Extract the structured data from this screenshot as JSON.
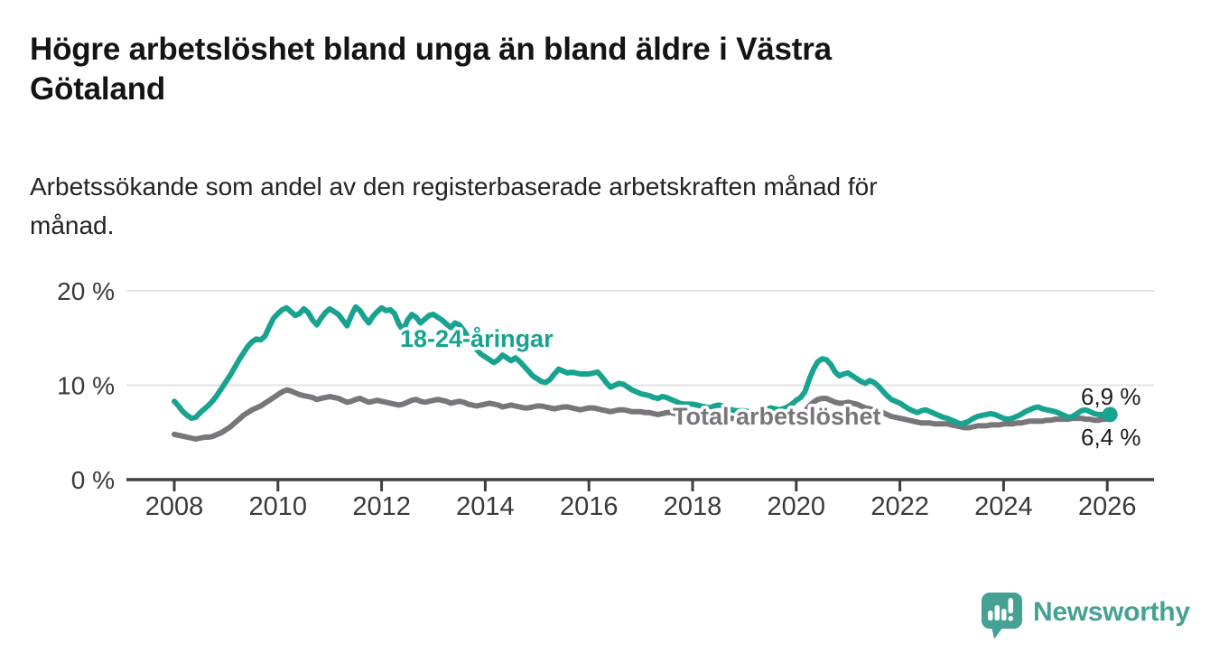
{
  "header": {
    "title_lines": [
      "Högre arbetslöshet bland unga än bland äldre i Västra",
      "Götaland"
    ],
    "subtitle_lines": [
      "Arbetssökande som andel av den registerbaserade arbetskraften månad för",
      "månad."
    ]
  },
  "chart_data": {
    "type": "line",
    "title": "Högre arbetslöshet bland unga än bland äldre i Västra Götaland",
    "subtitle": "Arbetssökande som andel av den registerbaserade arbetskraften månad för månad.",
    "x_unit": "year-month",
    "x_start_year": 2008,
    "months_per_point": 1,
    "x_ticks": [
      {
        "label": "2008",
        "year": 2008
      },
      {
        "label": "2010",
        "year": 2010
      },
      {
        "label": "2012",
        "year": 2012
      },
      {
        "label": "2014",
        "year": 2014
      },
      {
        "label": "2016",
        "year": 2016
      },
      {
        "label": "2018",
        "year": 2018
      },
      {
        "label": "2020",
        "year": 2020
      },
      {
        "label": "2022",
        "year": 2022
      },
      {
        "label": "2024",
        "year": 2024
      },
      {
        "label": "2026",
        "year": 2026
      }
    ],
    "y_ticks": [
      {
        "label": "0 %",
        "value": 0
      },
      {
        "label": "10 %",
        "value": 10
      },
      {
        "label": "20 %",
        "value": 20
      }
    ],
    "ylim": [
      0,
      21.5
    ],
    "grid": "horizontal-at-10-and-20",
    "legend_position": "inline-labels-on-lines",
    "series": [
      {
        "name": "Total arbetslöshet",
        "color": "#78767b",
        "end_label": "6,4 %",
        "end_value": 6.4,
        "values": [
          4.8,
          4.7,
          4.6,
          4.5,
          4.4,
          4.3,
          4.4,
          4.5,
          4.5,
          4.6,
          4.8,
          5.0,
          5.3,
          5.6,
          6.0,
          6.4,
          6.8,
          7.1,
          7.4,
          7.6,
          7.8,
          8.1,
          8.4,
          8.7,
          9.0,
          9.3,
          9.5,
          9.4,
          9.2,
          9.0,
          8.9,
          8.8,
          8.7,
          8.5,
          8.6,
          8.7,
          8.8,
          8.7,
          8.6,
          8.4,
          8.2,
          8.3,
          8.5,
          8.6,
          8.4,
          8.2,
          8.3,
          8.4,
          8.3,
          8.2,
          8.1,
          8.0,
          7.9,
          8.0,
          8.2,
          8.4,
          8.5,
          8.3,
          8.2,
          8.3,
          8.4,
          8.5,
          8.4,
          8.3,
          8.1,
          8.2,
          8.3,
          8.2,
          8.0,
          7.9,
          7.8,
          7.9,
          8.0,
          8.1,
          8.0,
          7.9,
          7.7,
          7.8,
          7.9,
          7.8,
          7.7,
          7.6,
          7.6,
          7.7,
          7.8,
          7.8,
          7.7,
          7.6,
          7.5,
          7.6,
          7.7,
          7.7,
          7.6,
          7.5,
          7.4,
          7.5,
          7.6,
          7.6,
          7.5,
          7.4,
          7.3,
          7.2,
          7.3,
          7.4,
          7.4,
          7.3,
          7.2,
          7.2,
          7.2,
          7.1,
          7.1,
          7.0,
          6.9,
          7.0,
          7.1,
          7.1,
          7.0,
          6.9,
          6.8,
          6.8,
          6.9,
          6.8,
          6.8,
          6.7,
          6.6,
          6.6,
          6.7,
          6.7,
          6.6,
          6.5,
          6.4,
          6.4,
          6.5,
          6.4,
          6.4,
          6.3,
          6.3,
          6.4,
          6.5,
          6.5,
          6.4,
          6.4,
          6.5,
          6.6,
          6.8,
          6.9,
          7.2,
          7.8,
          8.2,
          8.5,
          8.6,
          8.6,
          8.4,
          8.2,
          8.1,
          8.1,
          8.2,
          8.1,
          8.0,
          7.8,
          7.6,
          7.5,
          7.4,
          7.3,
          7.1,
          6.9,
          6.7,
          6.6,
          6.5,
          6.4,
          6.3,
          6.2,
          6.1,
          6.0,
          6.0,
          6.0,
          5.9,
          5.9,
          5.9,
          5.9,
          5.8,
          5.7,
          5.6,
          5.5,
          5.5,
          5.6,
          5.7,
          5.7,
          5.7,
          5.8,
          5.8,
          5.8,
          5.9,
          5.9,
          5.9,
          6.0,
          6.0,
          6.1,
          6.2,
          6.2,
          6.2,
          6.2,
          6.3,
          6.3,
          6.4,
          6.4,
          6.4,
          6.4,
          6.5,
          6.5,
          6.5,
          6.4,
          6.4,
          6.3,
          6.3,
          6.4,
          6.4
        ]
      },
      {
        "name": "18-24-åringar",
        "color": "#17a38f",
        "end_label": "6,9 %",
        "end_value": 6.9,
        "values": [
          8.3,
          7.8,
          7.2,
          6.8,
          6.5,
          6.6,
          7.1,
          7.5,
          7.9,
          8.4,
          9.0,
          9.7,
          10.4,
          11.1,
          11.9,
          12.7,
          13.4,
          14.1,
          14.6,
          14.9,
          14.8,
          15.2,
          16.2,
          17.1,
          17.6,
          18.0,
          18.2,
          17.8,
          17.4,
          17.6,
          18.1,
          17.7,
          16.9,
          16.4,
          17.1,
          17.7,
          18.1,
          17.8,
          17.5,
          16.9,
          16.3,
          17.4,
          18.3,
          17.9,
          17.2,
          16.6,
          17.3,
          17.8,
          18.2,
          17.9,
          18.0,
          17.6,
          16.5,
          15.8,
          16.9,
          17.5,
          17.2,
          16.6,
          17.0,
          17.4,
          17.5,
          17.2,
          16.9,
          16.5,
          16.1,
          16.6,
          16.4,
          15.8,
          15.1,
          14.4,
          13.8,
          13.3,
          13.0,
          12.7,
          12.4,
          12.7,
          13.2,
          12.9,
          12.6,
          12.9,
          12.5,
          12.0,
          11.5,
          11.0,
          10.7,
          10.4,
          10.3,
          10.6,
          11.2,
          11.7,
          11.5,
          11.3,
          11.4,
          11.3,
          11.2,
          11.2,
          11.2,
          11.3,
          11.4,
          10.9,
          10.3,
          9.8,
          10.0,
          10.2,
          10.1,
          9.8,
          9.5,
          9.3,
          9.1,
          9.0,
          8.9,
          8.7,
          8.6,
          8.8,
          8.7,
          8.5,
          8.3,
          8.1,
          8.0,
          8.0,
          8.0,
          7.9,
          7.8,
          7.7,
          7.6,
          7.8,
          7.9,
          7.8,
          7.6,
          7.4,
          7.3,
          7.3,
          7.3,
          7.2,
          7.2,
          7.1,
          7.2,
          7.4,
          7.6,
          7.5,
          7.4,
          7.5,
          7.7,
          8.0,
          8.4,
          8.7,
          9.3,
          10.6,
          11.7,
          12.5,
          12.8,
          12.7,
          12.2,
          11.4,
          11.0,
          11.2,
          11.3,
          11.0,
          10.7,
          10.4,
          10.2,
          10.5,
          10.3,
          9.9,
          9.4,
          8.9,
          8.5,
          8.3,
          8.1,
          7.8,
          7.5,
          7.3,
          7.1,
          7.3,
          7.4,
          7.2,
          7.0,
          6.8,
          6.6,
          6.5,
          6.3,
          6.1,
          5.9,
          6.0,
          6.2,
          6.5,
          6.7,
          6.8,
          6.9,
          7.0,
          6.9,
          6.7,
          6.5,
          6.4,
          6.5,
          6.7,
          6.9,
          7.2,
          7.4,
          7.6,
          7.7,
          7.5,
          7.4,
          7.3,
          7.2,
          7.0,
          6.8,
          6.6,
          6.7,
          7.0,
          7.3,
          7.4,
          7.2,
          7.0,
          6.9,
          6.9,
          6.9
        ]
      }
    ],
    "colors": {
      "grid": "#e3e3e3",
      "axis": "#3f3f3f",
      "youth": "#17a38f",
      "total": "#78767b"
    }
  },
  "footer": {
    "brand": "Newsworthy"
  }
}
